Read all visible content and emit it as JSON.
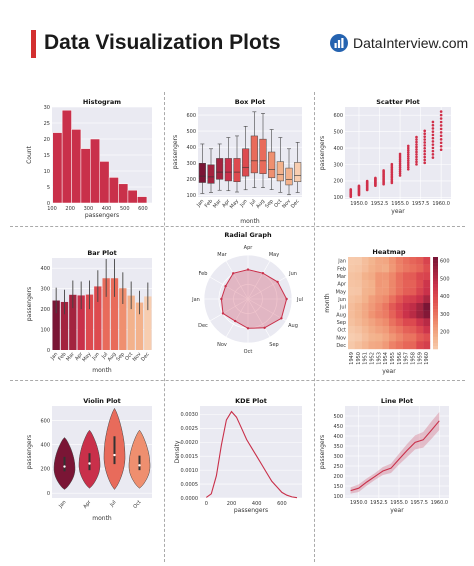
{
  "header": {
    "title": "Data Visualization Plots",
    "brand": "DataInterview.com",
    "accent_color": "#d32f2f",
    "brand_icon": "bar-chart-circle-icon",
    "brand_color": "#2563b0"
  },
  "theme": {
    "plot_bg": "#eaeaf2",
    "grid": "#ffffff",
    "palette": [
      "#7a1535",
      "#a3243f",
      "#c9304a",
      "#dd4a4f",
      "#e86b5b",
      "#ef8f6f",
      "#f3b28c",
      "#f7cdb0"
    ]
  },
  "chart_data": [
    {
      "id": "histogram",
      "type": "histogram",
      "title": "Histogram",
      "xlabel": "passengers",
      "ylabel": "Count",
      "xlim": [
        100,
        650
      ],
      "ylim": [
        0,
        30
      ],
      "xticks": [
        100,
        200,
        300,
        400,
        500,
        600
      ],
      "yticks": [
        0,
        5,
        10,
        15,
        20,
        25,
        30
      ],
      "bins": [
        {
          "x0": 104,
          "x1": 155.7,
          "value": 22
        },
        {
          "x0": 155.7,
          "x1": 207.4,
          "value": 29
        },
        {
          "x0": 207.4,
          "x1": 259.1,
          "value": 23
        },
        {
          "x0": 259.1,
          "x1": 310.8,
          "value": 17
        },
        {
          "x0": 310.8,
          "x1": 362.5,
          "value": 20
        },
        {
          "x0": 362.5,
          "x1": 414.2,
          "value": 13
        },
        {
          "x0": 414.2,
          "x1": 465.9,
          "value": 8
        },
        {
          "x0": 465.9,
          "x1": 517.6,
          "value": 6
        },
        {
          "x0": 517.6,
          "x1": 569.3,
          "value": 4
        },
        {
          "x0": 569.3,
          "x1": 622,
          "value": 2
        }
      ]
    },
    {
      "id": "boxplot",
      "type": "box",
      "title": "Box Plot",
      "xlabel": "month",
      "ylabel": "passengers",
      "ylim": [
        90,
        650
      ],
      "yticks": [
        100,
        200,
        300,
        400,
        500,
        600
      ],
      "categories": [
        "Jan",
        "Feb",
        "Mar",
        "Apr",
        "May",
        "Jun",
        "Jul",
        "Aug",
        "Sep",
        "Oct",
        "Nov",
        "Dec"
      ],
      "boxes": [
        {
          "min": 112,
          "q1": 180,
          "median": 220,
          "q3": 300,
          "max": 420
        },
        {
          "min": 118,
          "q1": 175,
          "median": 215,
          "q3": 290,
          "max": 390
        },
        {
          "min": 132,
          "q1": 200,
          "median": 245,
          "q3": 330,
          "max": 420
        },
        {
          "min": 129,
          "q1": 190,
          "median": 245,
          "q3": 330,
          "max": 460
        },
        {
          "min": 121,
          "q1": 185,
          "median": 245,
          "q3": 330,
          "max": 470
        },
        {
          "min": 135,
          "q1": 220,
          "median": 275,
          "q3": 390,
          "max": 530
        },
        {
          "min": 148,
          "q1": 240,
          "median": 315,
          "q3": 470,
          "max": 620
        },
        {
          "min": 148,
          "q1": 235,
          "median": 315,
          "q3": 450,
          "max": 610
        },
        {
          "min": 136,
          "q1": 210,
          "median": 260,
          "q3": 370,
          "max": 510
        },
        {
          "min": 119,
          "q1": 190,
          "median": 230,
          "q3": 310,
          "max": 460
        },
        {
          "min": 104,
          "q1": 165,
          "median": 200,
          "q3": 270,
          "max": 390
        },
        {
          "min": 118,
          "q1": 185,
          "median": 225,
          "q3": 305,
          "max": 430
        }
      ]
    },
    {
      "id": "scatter",
      "type": "scatter",
      "title": "Scatter Plot",
      "xlabel": "year",
      "ylabel": "passengers",
      "xlim": [
        1948.3,
        1961.2
      ],
      "ylim": [
        90,
        650
      ],
      "xticks": [
        1950,
        1952.5,
        1955,
        1957.5,
        1960
      ],
      "xtick_labels": [
        "1950.0",
        "1952.5",
        "1955.0",
        "1957.5",
        "1960.0"
      ],
      "yticks": [
        100,
        200,
        300,
        400,
        500,
        600
      ],
      "years": [
        1949,
        1950,
        1951,
        1952,
        1953,
        1954,
        1955,
        1956,
        1957,
        1958,
        1959,
        1960
      ],
      "year_ranges": [
        [
          104,
          148
        ],
        [
          114,
          170
        ],
        [
          145,
          199
        ],
        [
          171,
          218
        ],
        [
          180,
          264
        ],
        [
          188,
          302
        ],
        [
          233,
          364
        ],
        [
          271,
          413
        ],
        [
          301,
          467
        ],
        [
          310,
          505
        ],
        [
          342,
          559
        ],
        [
          390,
          622
        ]
      ],
      "color": "#d0304a"
    },
    {
      "id": "barplot",
      "type": "bar",
      "title": "Bar Plot",
      "xlabel": "month",
      "ylabel": "passengers",
      "ylim": [
        0,
        450
      ],
      "yticks": [
        0,
        100,
        200,
        300,
        400
      ],
      "categories": [
        "Jan",
        "Feb",
        "Mar",
        "Apr",
        "May",
        "Jun",
        "Jul",
        "Aug",
        "Sep",
        "Oct",
        "Nov",
        "Dec"
      ],
      "values": [
        242,
        235,
        270,
        267,
        271,
        311,
        351,
        351,
        302,
        266,
        232,
        262
      ],
      "error": [
        [
          180,
          305
        ],
        [
          175,
          295
        ],
        [
          205,
          340
        ],
        [
          200,
          335
        ],
        [
          200,
          340
        ],
        [
          235,
          390
        ],
        [
          260,
          445
        ],
        [
          260,
          445
        ],
        [
          225,
          380
        ],
        [
          200,
          335
        ],
        [
          175,
          290
        ],
        [
          195,
          330
        ]
      ]
    },
    {
      "id": "radial",
      "type": "radar",
      "title": "Radial Graph",
      "categories": [
        "Jan",
        "Feb",
        "Mar",
        "Apr",
        "May",
        "Jun",
        "Jul",
        "Aug",
        "Sep",
        "Oct",
        "Nov",
        "Dec"
      ],
      "values": [
        242,
        235,
        270,
        267,
        271,
        311,
        351,
        351,
        302,
        266,
        232,
        262
      ],
      "rmax": 400,
      "color": "#c9304a"
    },
    {
      "id": "heatmap",
      "type": "heatmap",
      "title": "Heatmap",
      "xlabel": "year",
      "ylabel": "month",
      "rows": [
        "Jan",
        "Feb",
        "Mar",
        "Apr",
        "May",
        "Jun",
        "Jul",
        "Aug",
        "Sep",
        "Oct",
        "Nov",
        "Dec"
      ],
      "cols": [
        "1949",
        "1950",
        "1951",
        "1952",
        "1953",
        "1954",
        "1955",
        "1956",
        "1957",
        "1958",
        "1959",
        "1960"
      ],
      "colorbar_ticks": [
        200,
        300,
        400,
        500,
        600
      ],
      "vmin": 104,
      "vmax": 622,
      "values": [
        [
          112,
          115,
          145,
          171,
          196,
          204,
          242,
          284,
          315,
          340,
          360,
          417
        ],
        [
          118,
          126,
          150,
          180,
          196,
          188,
          233,
          277,
          301,
          318,
          342,
          391
        ],
        [
          132,
          141,
          178,
          193,
          236,
          235,
          267,
          317,
          356,
          362,
          406,
          419
        ],
        [
          129,
          135,
          163,
          181,
          235,
          227,
          269,
          313,
          348,
          348,
          396,
          461
        ],
        [
          121,
          125,
          172,
          183,
          229,
          234,
          270,
          318,
          355,
          363,
          420,
          472
        ],
        [
          135,
          149,
          178,
          218,
          243,
          264,
          315,
          374,
          422,
          435,
          472,
          535
        ],
        [
          148,
          170,
          199,
          230,
          264,
          302,
          364,
          413,
          465,
          491,
          548,
          622
        ],
        [
          148,
          170,
          199,
          242,
          272,
          293,
          347,
          405,
          467,
          505,
          559,
          606
        ],
        [
          136,
          158,
          184,
          209,
          237,
          259,
          312,
          355,
          404,
          404,
          463,
          508
        ],
        [
          119,
          133,
          162,
          191,
          211,
          229,
          274,
          306,
          347,
          359,
          407,
          461
        ],
        [
          104,
          114,
          146,
          172,
          180,
          203,
          237,
          271,
          305,
          310,
          362,
          390
        ],
        [
          118,
          140,
          166,
          194,
          201,
          229,
          278,
          306,
          336,
          337,
          405,
          432
        ]
      ]
    },
    {
      "id": "violin",
      "type": "violin",
      "title": "Violin Plot",
      "xlabel": "month",
      "ylabel": "passengers",
      "ylim": [
        -40,
        720
      ],
      "yticks": [
        0,
        200,
        400,
        600
      ],
      "categories": [
        "Jan",
        "Apr",
        "Jul",
        "Oct"
      ],
      "violins": [
        {
          "min": 30,
          "max": 460,
          "q1": 180,
          "median": 220,
          "q3": 300,
          "peak": 200
        },
        {
          "min": 40,
          "max": 520,
          "q1": 190,
          "median": 245,
          "q3": 330,
          "peak": 230
        },
        {
          "min": 30,
          "max": 700,
          "q1": 240,
          "median": 315,
          "q3": 470,
          "peak": 300
        },
        {
          "min": 40,
          "max": 520,
          "q1": 190,
          "median": 230,
          "q3": 310,
          "peak": 220
        }
      ]
    },
    {
      "id": "kde",
      "type": "line",
      "title": "KDE Plot",
      "xlabel": "passengers",
      "ylabel": "Density",
      "xlim": [
        -50,
        760
      ],
      "ylim": [
        0,
        0.0033
      ],
      "xticks": [
        0,
        200,
        400,
        600
      ],
      "yticks": [
        0,
        0.0005,
        0.001,
        0.0015,
        0.002,
        0.0025,
        0.003
      ],
      "ytick_labels": [
        "0.0000",
        "0.0005",
        "0.0010",
        "0.0015",
        "0.0020",
        "0.0025",
        "0.0030"
      ],
      "x": [
        0,
        40,
        80,
        120,
        160,
        200,
        240,
        280,
        320,
        360,
        400,
        440,
        480,
        520,
        560,
        600,
        640,
        680,
        720
      ],
      "y": [
        2e-05,
        0.00015,
        0.0008,
        0.0019,
        0.0028,
        0.0031,
        0.0029,
        0.0025,
        0.0021,
        0.0018,
        0.0015,
        0.0012,
        0.0009,
        0.0006,
        0.0004,
        0.0002,
        0.0001,
        4e-05,
        1e-05
      ],
      "color": "#c9304a"
    },
    {
      "id": "lineplot",
      "type": "line",
      "title": "Line Plot",
      "xlabel": "year",
      "ylabel": "passengers",
      "xlim": [
        1948.3,
        1961.2
      ],
      "ylim": [
        90,
        550
      ],
      "xticks": [
        1950,
        1952.5,
        1955,
        1957.5,
        1960
      ],
      "xtick_labels": [
        "1950.0",
        "1952.5",
        "1955.0",
        "1957.5",
        "1960.0"
      ],
      "yticks": [
        100,
        150,
        200,
        250,
        300,
        350,
        400,
        450,
        500
      ],
      "x": [
        1949,
        1950,
        1951,
        1952,
        1953,
        1954,
        1955,
        1956,
        1957,
        1958,
        1959,
        1960
      ],
      "y": [
        127,
        139,
        170,
        197,
        225,
        239,
        284,
        328,
        368,
        381,
        428,
        476
      ],
      "band": [
        [
          112,
          143
        ],
        [
          120,
          158
        ],
        [
          152,
          188
        ],
        [
          180,
          214
        ],
        [
          205,
          245
        ],
        [
          215,
          262
        ],
        [
          257,
          311
        ],
        [
          295,
          360
        ],
        [
          333,
          403
        ],
        [
          342,
          420
        ],
        [
          385,
          472
        ],
        [
          430,
          520
        ]
      ],
      "color": "#c9304a"
    }
  ]
}
